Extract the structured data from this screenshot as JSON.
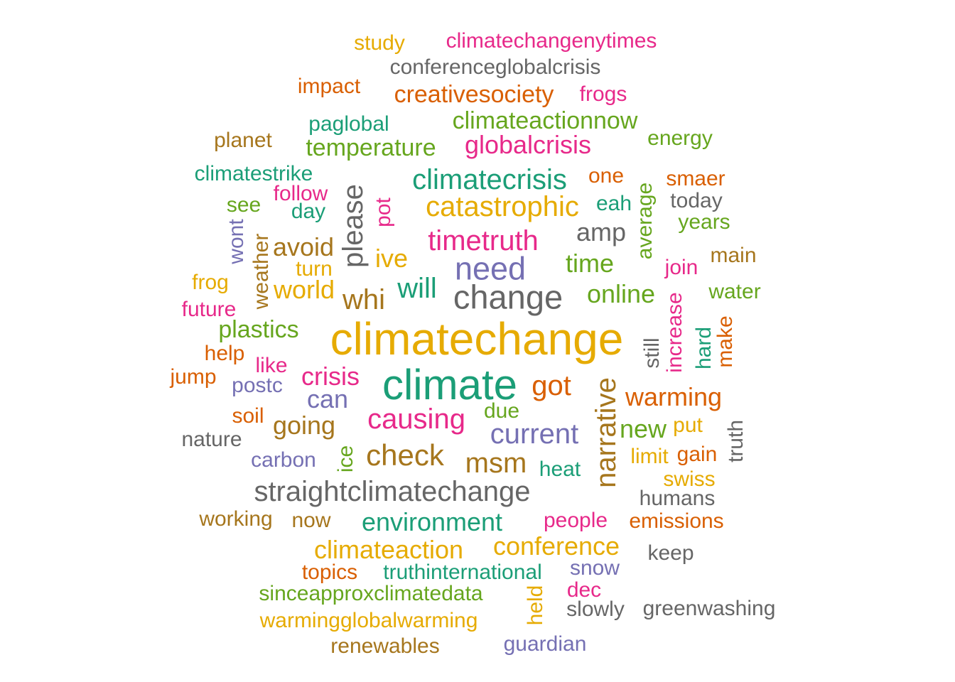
{
  "colors": {
    "teal": "#1B9E77",
    "orange": "#D95F02",
    "purple": "#7570B3",
    "pink": "#E7298A",
    "green": "#66A61E",
    "gold": "#E6AB02",
    "brown": "#A6761D",
    "gray": "#666666"
  },
  "words": [
    {
      "text": "climatechange",
      "color": "gold"
    },
    {
      "text": "climate",
      "color": "teal"
    },
    {
      "text": "change",
      "color": "gray"
    },
    {
      "text": "need",
      "color": "purple"
    },
    {
      "text": "narrative",
      "color": "brown",
      "rotated": true
    },
    {
      "text": "straightclimatechange",
      "color": "gray"
    },
    {
      "text": "causing",
      "color": "pink"
    },
    {
      "text": "check",
      "color": "brown"
    },
    {
      "text": "current",
      "color": "purple"
    },
    {
      "text": "catastrophic",
      "color": "gold"
    },
    {
      "text": "climatecrisis",
      "color": "teal"
    },
    {
      "text": "timetruth",
      "color": "pink"
    },
    {
      "text": "environment",
      "color": "teal"
    },
    {
      "text": "msm",
      "color": "brown"
    },
    {
      "text": "got",
      "color": "orange"
    },
    {
      "text": "will",
      "color": "teal"
    },
    {
      "text": "whi",
      "color": "brown"
    },
    {
      "text": "please",
      "color": "gray",
      "rotated": true
    },
    {
      "text": "time",
      "color": "green"
    },
    {
      "text": "ive",
      "color": "gold"
    },
    {
      "text": "online",
      "color": "green"
    },
    {
      "text": "climateaction",
      "color": "gold"
    },
    {
      "text": "conference",
      "color": "gold"
    },
    {
      "text": "globalcrisis",
      "color": "pink"
    },
    {
      "text": "crisis",
      "color": "pink"
    },
    {
      "text": "warming",
      "color": "orange"
    },
    {
      "text": "amp",
      "color": "gray"
    },
    {
      "text": "climateactionnow",
      "color": "green"
    },
    {
      "text": "creativesociety",
      "color": "orange"
    },
    {
      "text": "temperature",
      "color": "green"
    },
    {
      "text": "going",
      "color": "brown"
    },
    {
      "text": "can",
      "color": "purple"
    },
    {
      "text": "world",
      "color": "gold"
    },
    {
      "text": "avoid",
      "color": "brown"
    },
    {
      "text": "new",
      "color": "green"
    },
    {
      "text": "truthinternational",
      "color": "teal"
    },
    {
      "text": "paglobal",
      "color": "teal"
    },
    {
      "text": "conferenceglobalcrisis",
      "color": "gray"
    },
    {
      "text": "climatechangenytimes",
      "color": "pink"
    },
    {
      "text": "plastics",
      "color": "green"
    },
    {
      "text": "pot",
      "color": "pink",
      "rotated": true
    },
    {
      "text": "people",
      "color": "pink"
    },
    {
      "text": "heat",
      "color": "teal"
    },
    {
      "text": "sinceapproxclimatedata",
      "color": "green"
    },
    {
      "text": "warmingglobalwarming",
      "color": "gold"
    },
    {
      "text": "increase",
      "color": "pink",
      "rotated": true
    },
    {
      "text": "climatestrike",
      "color": "teal"
    },
    {
      "text": "impact",
      "color": "orange"
    },
    {
      "text": "study",
      "color": "gold"
    },
    {
      "text": "frogs",
      "color": "pink"
    },
    {
      "text": "energy",
      "color": "green"
    },
    {
      "text": "planet",
      "color": "brown"
    },
    {
      "text": "one",
      "color": "orange"
    },
    {
      "text": "smaer",
      "color": "orange"
    },
    {
      "text": "today",
      "color": "gray"
    },
    {
      "text": "eah",
      "color": "teal"
    },
    {
      "text": "years",
      "color": "green"
    },
    {
      "text": "average",
      "color": "green",
      "rotated": true
    },
    {
      "text": "main",
      "color": "brown"
    },
    {
      "text": "join",
      "color": "pink"
    },
    {
      "text": "water",
      "color": "green"
    },
    {
      "text": "follow",
      "color": "pink"
    },
    {
      "text": "see",
      "color": "green"
    },
    {
      "text": "day",
      "color": "teal"
    },
    {
      "text": "wont",
      "color": "purple",
      "rotated": true
    },
    {
      "text": "weather",
      "color": "brown",
      "rotated": true
    },
    {
      "text": "turn",
      "color": "gold"
    },
    {
      "text": "frog",
      "color": "gold"
    },
    {
      "text": "future",
      "color": "pink"
    },
    {
      "text": "help",
      "color": "orange"
    },
    {
      "text": "like",
      "color": "pink"
    },
    {
      "text": "jump",
      "color": "orange"
    },
    {
      "text": "postc",
      "color": "purple"
    },
    {
      "text": "soil",
      "color": "orange"
    },
    {
      "text": "nature",
      "color": "gray"
    },
    {
      "text": "carbon",
      "color": "purple"
    },
    {
      "text": "ice",
      "color": "green",
      "rotated": true
    },
    {
      "text": "due",
      "color": "green"
    },
    {
      "text": "still",
      "color": "gray",
      "rotated": true
    },
    {
      "text": "hard",
      "color": "teal",
      "rotated": true
    },
    {
      "text": "make",
      "color": "orange",
      "rotated": true
    },
    {
      "text": "truth",
      "color": "gray",
      "rotated": true
    },
    {
      "text": "put",
      "color": "gold"
    },
    {
      "text": "limit",
      "color": "gold"
    },
    {
      "text": "gain",
      "color": "orange"
    },
    {
      "text": "swiss",
      "color": "gold"
    },
    {
      "text": "humans",
      "color": "gray"
    },
    {
      "text": "emissions",
      "color": "orange"
    },
    {
      "text": "working",
      "color": "brown"
    },
    {
      "text": "now",
      "color": "brown"
    },
    {
      "text": "keep",
      "color": "gray"
    },
    {
      "text": "topics",
      "color": "orange"
    },
    {
      "text": "snow",
      "color": "purple"
    },
    {
      "text": "dec",
      "color": "pink"
    },
    {
      "text": "held",
      "color": "gold",
      "rotated": true
    },
    {
      "text": "slowly",
      "color": "gray"
    },
    {
      "text": "greenwashing",
      "color": "gray"
    },
    {
      "text": "renewables",
      "color": "brown"
    },
    {
      "text": "guardian",
      "color": "purple"
    }
  ]
}
